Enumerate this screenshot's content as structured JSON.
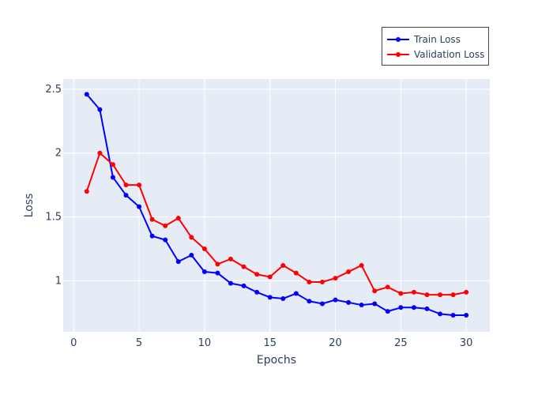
{
  "chart_data": {
    "type": "line",
    "xlabel": "Epochs",
    "ylabel": "Loss",
    "xlim": [
      -0.8,
      31.8
    ],
    "ylim": [
      0.6,
      2.58
    ],
    "x_ticks": [
      0,
      5,
      10,
      15,
      20,
      25,
      30
    ],
    "x_tick_labels": [
      "0",
      "5",
      "10",
      "15",
      "20",
      "25",
      "30"
    ],
    "y_ticks": [
      1.0,
      1.5,
      2.0,
      2.5
    ],
    "y_tick_labels": [
      "1",
      "1.5",
      "2",
      "2.5"
    ],
    "grid": true,
    "plot_background": "#e5ecf6",
    "legend_position": "top-right",
    "x": [
      1,
      2,
      3,
      4,
      5,
      6,
      7,
      8,
      9,
      10,
      11,
      12,
      13,
      14,
      15,
      16,
      17,
      18,
      19,
      20,
      21,
      22,
      23,
      24,
      25,
      26,
      27,
      28,
      29,
      30
    ],
    "series": [
      {
        "name": "Train Loss",
        "color": "#0000ff",
        "values": [
          2.46,
          2.34,
          1.81,
          1.67,
          1.58,
          1.35,
          1.32,
          1.15,
          1.2,
          1.07,
          1.06,
          0.98,
          0.96,
          0.91,
          0.87,
          0.86,
          0.9,
          0.84,
          0.82,
          0.85,
          0.83,
          0.81,
          0.82,
          0.76,
          0.79,
          0.79,
          0.78,
          0.74,
          0.73,
          0.73
        ]
      },
      {
        "name": "Validation Loss",
        "color": "#ff0000",
        "values": [
          1.7,
          2.0,
          1.91,
          1.75,
          1.75,
          1.48,
          1.43,
          1.49,
          1.34,
          1.25,
          1.13,
          1.17,
          1.11,
          1.05,
          1.03,
          1.12,
          1.06,
          0.99,
          0.99,
          1.02,
          1.07,
          1.12,
          0.92,
          0.95,
          0.9,
          0.91,
          0.89,
          0.89,
          0.89,
          0.91
        ]
      }
    ]
  }
}
